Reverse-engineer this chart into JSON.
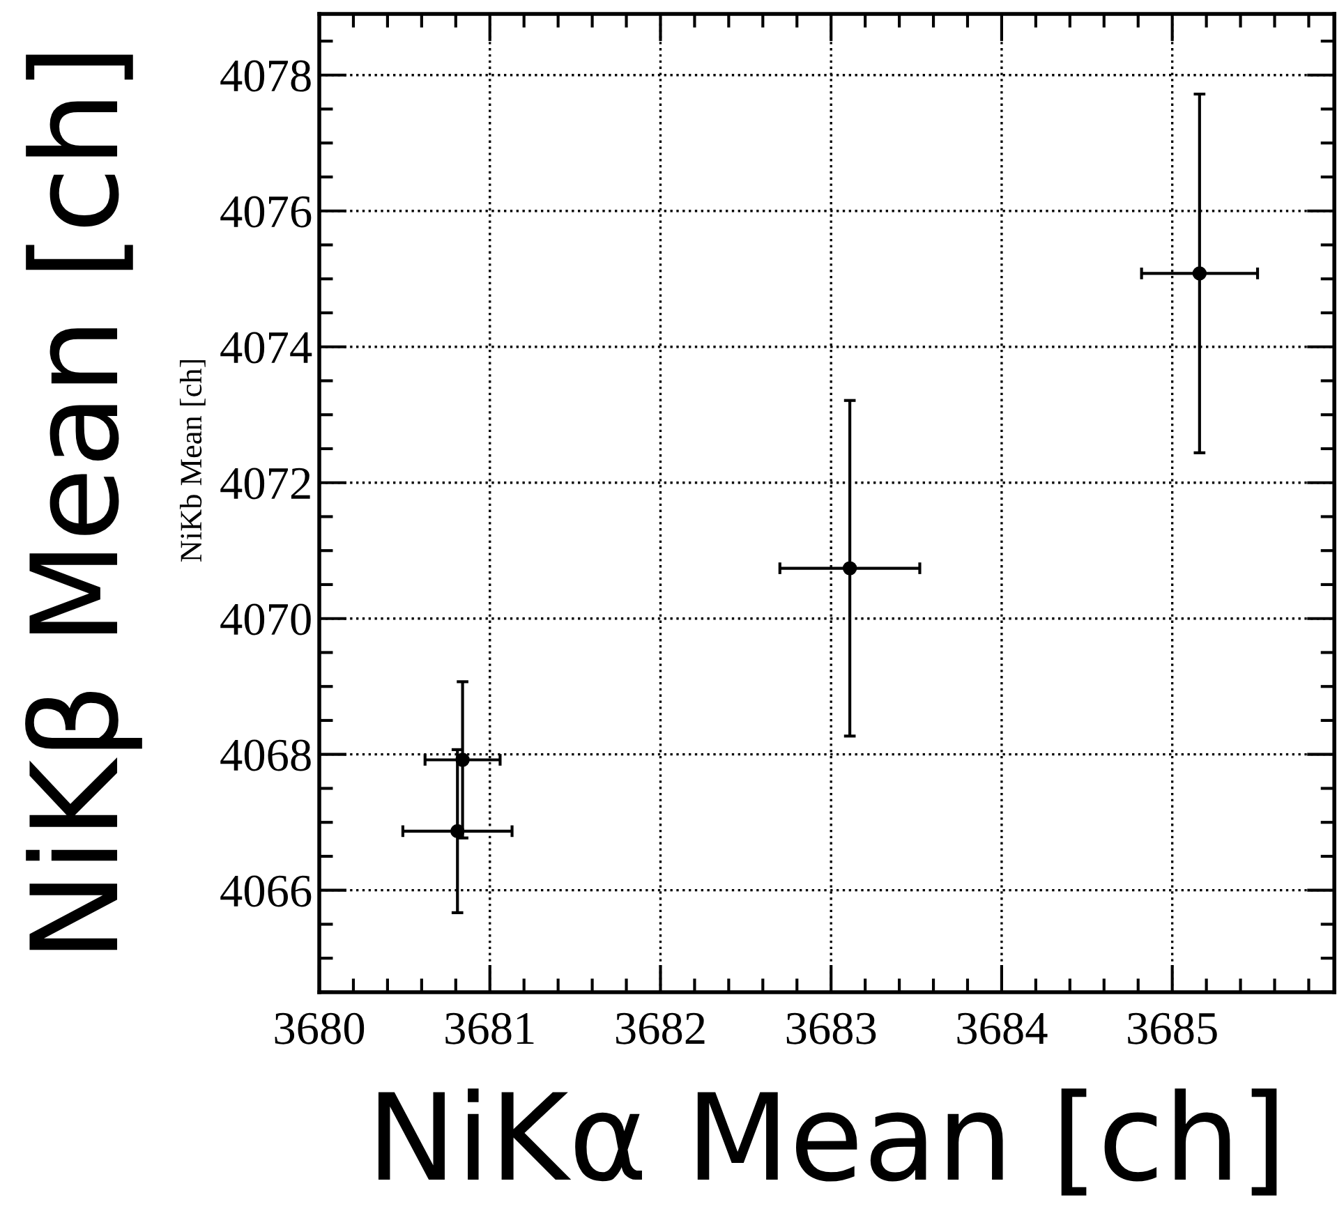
{
  "chart_data": {
    "type": "scatter",
    "xlabel": "NiKα Mean [ch]",
    "ylabel": "NiKβ Mean [ch]",
    "annotations": [
      "NiKb Mean [ch]"
    ],
    "x": [
      3680.81,
      3680.84,
      3683.11,
      3685.16
    ],
    "values": [
      4066.87,
      4067.92,
      4070.74,
      4075.08
    ],
    "errors": [
      1.2,
      1.15,
      2.47,
      2.64
    ],
    "xerrors": [
      0.32,
      0.22,
      0.41,
      0.34
    ],
    "color": "#000000",
    "marker": "circle",
    "xlim": [
      3680,
      3685.95
    ],
    "ylim": [
      4064.5,
      4078.9
    ],
    "xticks": [
      3680,
      3681,
      3682,
      3683,
      3684,
      3685
    ],
    "yticks": [
      4066,
      4068,
      4070,
      4072,
      4074,
      4076,
      4078
    ],
    "grid": true
  }
}
